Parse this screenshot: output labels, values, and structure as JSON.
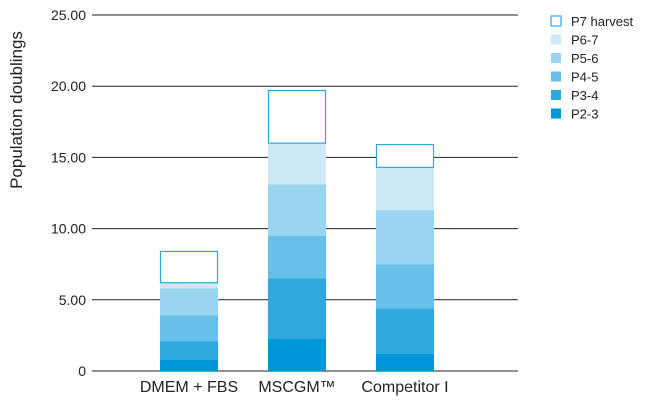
{
  "chart_data": {
    "type": "bar",
    "stacked": true,
    "ylabel": "Population doublings",
    "xlabel": "",
    "ylim": [
      0,
      25
    ],
    "yticks": [
      "0",
      "5.00",
      "10.00",
      "15.00",
      "20.00",
      "25.00"
    ],
    "yticks_values": [
      0,
      5,
      10,
      15,
      20,
      25
    ],
    "grid": true,
    "legend_position": "top-right",
    "categories": [
      "DMEM + FBS",
      "MSCGM™",
      "Competitor I"
    ],
    "series": [
      {
        "name": "P2-3",
        "color": "#0096d8",
        "values": [
          0.8,
          2.3,
          1.2
        ]
      },
      {
        "name": "P3-4",
        "color": "#2ea8df",
        "values": [
          1.3,
          4.2,
          3.2
        ]
      },
      {
        "name": "P4-5",
        "color": "#66c0e8",
        "values": [
          1.8,
          3.0,
          3.1
        ]
      },
      {
        "name": "P5-6",
        "color": "#99d5f0",
        "values": [
          1.9,
          3.6,
          3.8
        ]
      },
      {
        "name": "P6-7",
        "color": "#cce9f7",
        "values": [
          0.4,
          2.9,
          3.0
        ]
      },
      {
        "name": "P7 harvest",
        "color": "#ffffff",
        "outline": "#2ea8df",
        "values": [
          2.2,
          3.7,
          1.6
        ]
      }
    ]
  }
}
